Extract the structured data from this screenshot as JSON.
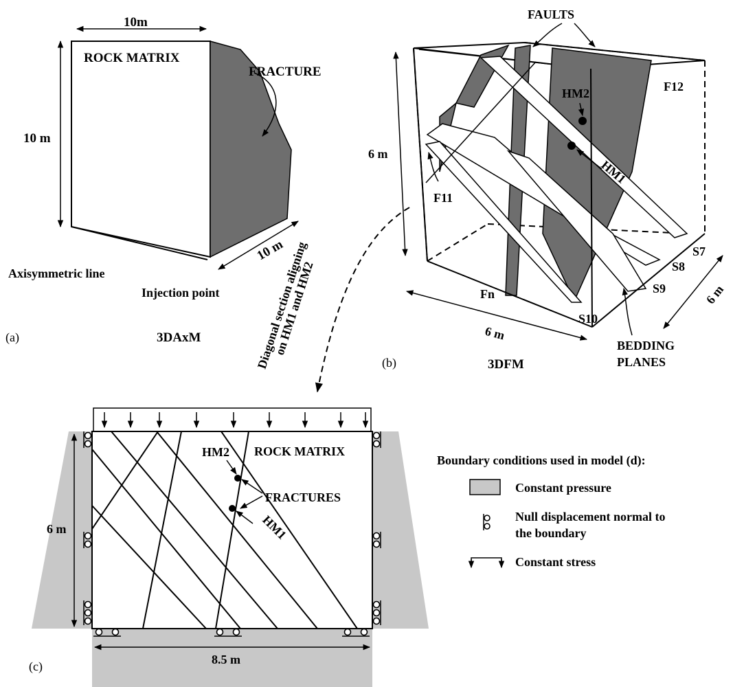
{
  "panel_a": {
    "width_label": "10m",
    "height_label": "10 m",
    "depth_label": "10 m",
    "matrix_label": "ROCK MATRIX",
    "fracture_label": "FRACTURE",
    "axis_label": "Axisymmetric line",
    "injection_label": "Injection point",
    "model_name": "3DAxM",
    "panel_letter": "(a)"
  },
  "panel_b": {
    "faults_label": "FAULTS",
    "f12_label": "F12",
    "f11_label": "F11",
    "fn_label": "Fn",
    "hm2_label": "HM2",
    "hm1_label": "HM1",
    "height_label": "6 m",
    "width_label": "6 m",
    "depth_label": "6 m",
    "s7": "S7",
    "s8": "S8",
    "s9": "S9",
    "s10": "S10",
    "bedding_line1": "BEDDING",
    "bedding_line2": "PLANES",
    "model_name": "3DFM",
    "panel_letter": "(b)"
  },
  "connector": {
    "line1": "Diagonal section aligning",
    "line2": "on HM1 and HM2"
  },
  "panel_c": {
    "matrix_label": "ROCK MATRIX",
    "hm2_label": "HM2",
    "hm1_label": "HM1",
    "fractures_label": "FRACTURES",
    "height_label": "6 m",
    "width_label": "8.5 m",
    "panel_letter": "(c)"
  },
  "legend": {
    "title": "Boundary conditions used in model (d):",
    "pressure": "Constant pressure",
    "null_line1": "Null displacement normal to",
    "null_line2": "the boundary",
    "stress": "Constant stress"
  },
  "colors": {
    "fracture_fill": "#6e6e6e",
    "pressure_fill": "#c8c8c8"
  }
}
